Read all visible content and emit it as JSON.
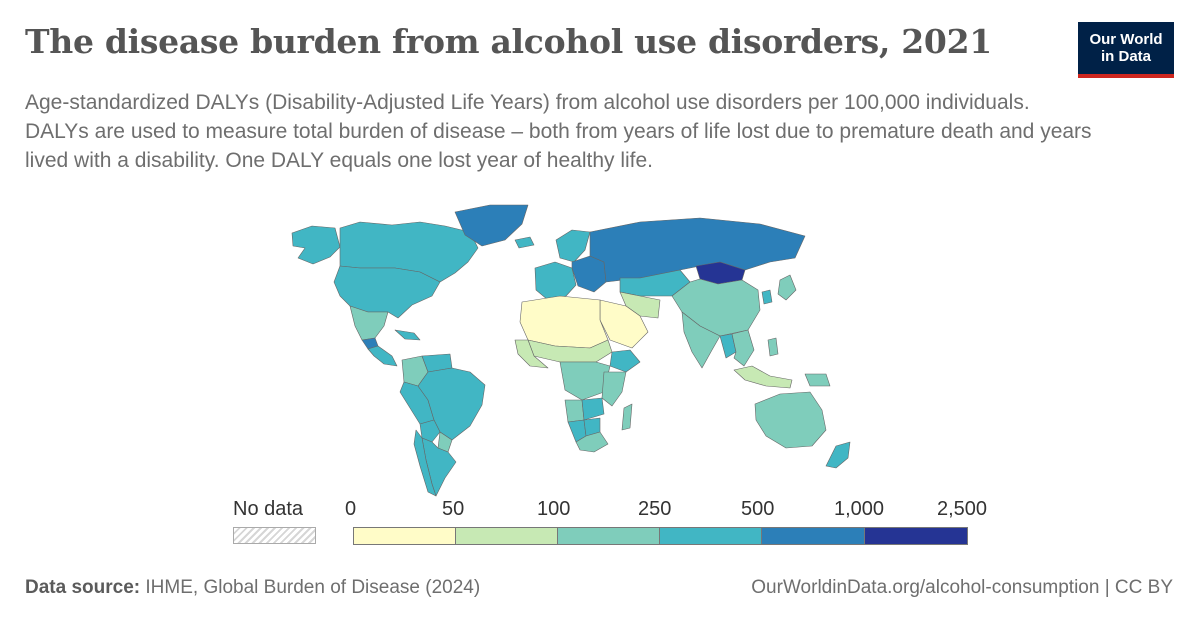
{
  "header": {
    "title": "The disease burden from alcohol use disorders, 2021",
    "subtitle_line1": "Age-standardized DALYs (Disability-Adjusted Life Years) from alcohol use disorders per 100,000 individuals.",
    "subtitle_line2": "DALYs are used to measure total burden of disease – both from years of life lost due to premature death and years lived with a disability. One DALY equals one lost year of healthy life."
  },
  "logo": {
    "line1": "Our World",
    "line2": "in Data",
    "bg": "#002147",
    "accent": "#ce261e"
  },
  "legend": {
    "no_data_label": "No data",
    "ticks": [
      "0",
      "50",
      "100",
      "250",
      "500",
      "1,000",
      "2,500"
    ],
    "colors": [
      "#fffcc8",
      "#c7e9b4",
      "#7fcdbb",
      "#41b6c4",
      "#2c7fb8",
      "#253494"
    ]
  },
  "map_data": {
    "regions": [
      {
        "name": "Alaska",
        "bin": 3
      },
      {
        "name": "Canada",
        "bin": 3
      },
      {
        "name": "United States",
        "bin": 3
      },
      {
        "name": "Mexico",
        "bin": 2
      },
      {
        "name": "Guatemala",
        "bin": 4
      },
      {
        "name": "Central America",
        "bin": 3
      },
      {
        "name": "Caribbean",
        "bin": 3
      },
      {
        "name": "Greenland",
        "bin": 4
      },
      {
        "name": "Iceland",
        "bin": 3
      },
      {
        "name": "Colombia",
        "bin": 2
      },
      {
        "name": "Venezuela",
        "bin": 3
      },
      {
        "name": "Peru",
        "bin": 3
      },
      {
        "name": "Brazil",
        "bin": 3
      },
      {
        "name": "Bolivia",
        "bin": 3
      },
      {
        "name": "Paraguay",
        "bin": 2
      },
      {
        "name": "Argentina",
        "bin": 3
      },
      {
        "name": "Chile",
        "bin": 3
      },
      {
        "name": "Western Europe",
        "bin": 3
      },
      {
        "name": "Scandinavia",
        "bin": 3
      },
      {
        "name": "Eastern Europe",
        "bin": 4
      },
      {
        "name": "Russia",
        "bin": 4
      },
      {
        "name": "Kazakhstan",
        "bin": 3
      },
      {
        "name": "Mongolia",
        "bin": 5
      },
      {
        "name": "China",
        "bin": 2
      },
      {
        "name": "Japan",
        "bin": 2
      },
      {
        "name": "Korea",
        "bin": 3
      },
      {
        "name": "Iran",
        "bin": 1
      },
      {
        "name": "Arabian Peninsula",
        "bin": 0
      },
      {
        "name": "North Africa",
        "bin": 0
      },
      {
        "name": "Sahel",
        "bin": 1
      },
      {
        "name": "West Africa",
        "bin": 1
      },
      {
        "name": "Ethiopia",
        "bin": 3
      },
      {
        "name": "Central Africa",
        "bin": 2
      },
      {
        "name": "East Africa",
        "bin": 2
      },
      {
        "name": "Angola",
        "bin": 2
      },
      {
        "name": "Namibia",
        "bin": 3
      },
      {
        "name": "Zambia",
        "bin": 3
      },
      {
        "name": "Botswana",
        "bin": 3
      },
      {
        "name": "South Africa",
        "bin": 2
      },
      {
        "name": "Madagascar",
        "bin": 2
      },
      {
        "name": "India",
        "bin": 2
      },
      {
        "name": "Myanmar",
        "bin": 3
      },
      {
        "name": "Southeast Asia",
        "bin": 2
      },
      {
        "name": "Philippines",
        "bin": 2
      },
      {
        "name": "Indonesia",
        "bin": 1
      },
      {
        "name": "Papua New Guinea",
        "bin": 2
      },
      {
        "name": "Australia",
        "bin": 2
      },
      {
        "name": "New Zealand",
        "bin": 3
      }
    ]
  },
  "footer": {
    "source_label": "Data source:",
    "source_text": "IHME, Global Burden of Disease (2024)",
    "url_text": "OurWorldinData.org/alcohol-consumption | CC BY"
  }
}
